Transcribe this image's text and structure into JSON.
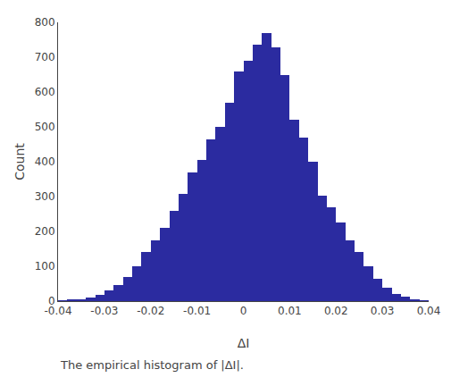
{
  "chart_data": {
    "type": "histogram",
    "xlabel": "ΔI",
    "ylabel": "Count",
    "annotations": [
      "The empirical histogram of |ΔI|."
    ],
    "bins": [
      -0.04,
      -0.038,
      -0.036,
      -0.034,
      -0.032,
      -0.03,
      -0.028,
      -0.026,
      -0.024,
      -0.022,
      -0.02,
      -0.018,
      -0.016,
      -0.014,
      -0.012,
      -0.01,
      -0.008,
      -0.006,
      -0.004,
      -0.002,
      0,
      0.002,
      0.004,
      0.006,
      0.008,
      0.01,
      0.012,
      0.014,
      0.016,
      0.018,
      0.02,
      0.022,
      0.024,
      0.026,
      0.028,
      0.03,
      0.032,
      0.034,
      0.036,
      0.038,
      0.04
    ],
    "values": [
      1,
      3,
      5,
      10,
      18,
      30,
      47,
      68,
      100,
      140,
      175,
      210,
      260,
      308,
      370,
      405,
      465,
      500,
      570,
      660,
      690,
      737,
      770,
      727,
      650,
      520,
      470,
      400,
      303,
      268,
      225,
      175,
      140,
      100,
      65,
      38,
      20,
      12,
      5,
      2
    ],
    "color": "#2B2BA0",
    "xlim": [
      -0.04,
      0.04
    ],
    "ylim": [
      0,
      800
    ],
    "xticks": [
      -0.04,
      -0.03,
      -0.02,
      -0.01,
      0,
      0.01,
      0.02,
      0.03,
      0.04
    ],
    "yticks": [
      0,
      100,
      200,
      300,
      400,
      500,
      600,
      700,
      800
    ],
    "grid": false
  }
}
